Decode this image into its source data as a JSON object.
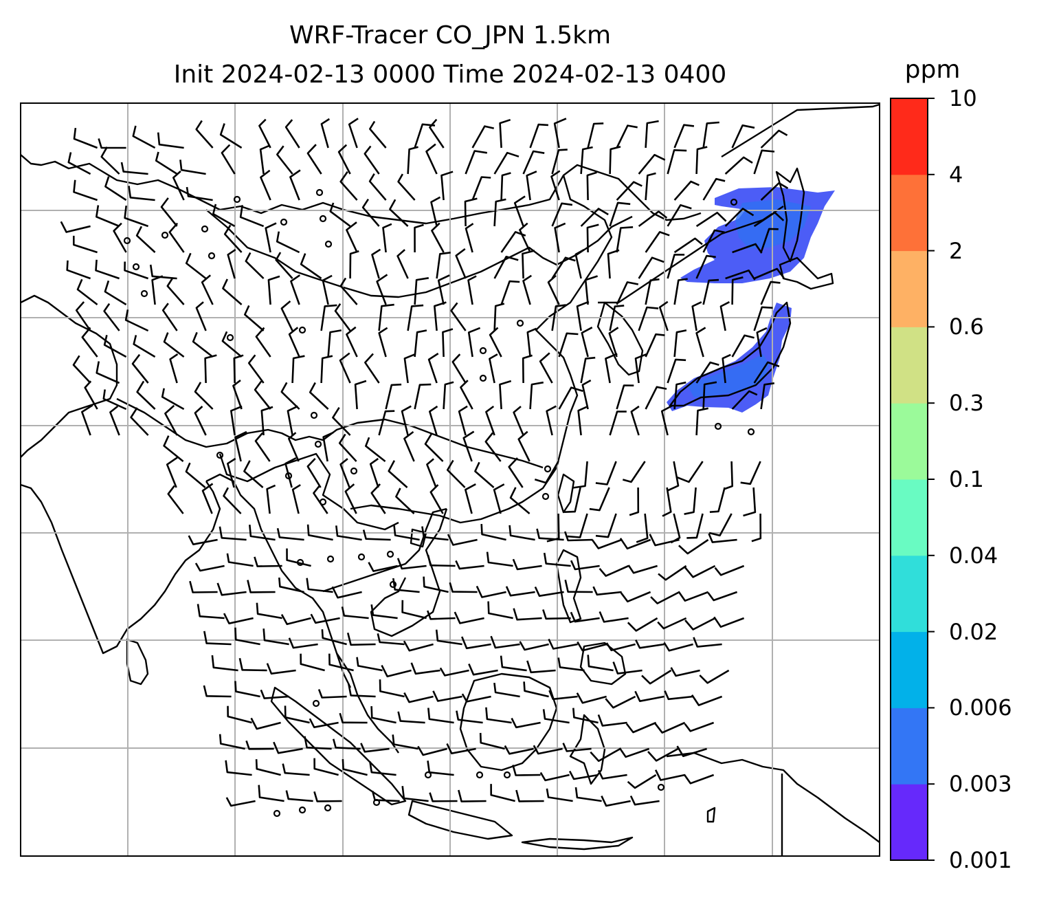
{
  "title": {
    "line1": "WRF-Tracer CO_JPN 1.5km",
    "line2": "Init 2024-02-13 0000 Time 2024-02-13 0400"
  },
  "colorbar": {
    "unit": "ppm",
    "ticks": [
      "0.001",
      "0.003",
      "0.006",
      "0.02",
      "0.04",
      "0.1",
      "0.3",
      "0.6",
      "2",
      "4",
      "10"
    ],
    "colors": [
      "#6629fb",
      "#3376f5",
      "#02b1e9",
      "#30deda",
      "#69fbc2",
      "#9bfa9a",
      "#d0e185",
      "#feb164",
      "#fe7138",
      "#ff2a1a"
    ]
  },
  "map": {
    "tracer_color": "#3d4ff5",
    "grid_color": "#b0b0b0"
  }
}
